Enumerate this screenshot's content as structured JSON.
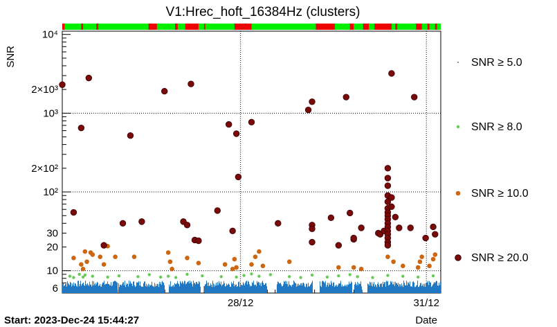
{
  "chart_data": {
    "type": "scatter",
    "title": "V1:Hrec_hoft_16384Hz (clusters)",
    "ylabel": "SNR",
    "xlabel": "Date",
    "start_label": "Start: 2023-Dec-24 15:44:27",
    "y_scale": "log",
    "ylim": [
      5.2,
      11000
    ],
    "x_tick_labels": [
      "28/12",
      "31/12"
    ],
    "y_tick_labels": [
      {
        "value": 10000,
        "label": "10⁴"
      },
      {
        "value": 2000,
        "label": "2×10³"
      },
      {
        "value": 1000,
        "label": "10³"
      },
      {
        "value": 200,
        "label": "2×10²"
      },
      {
        "value": 100,
        "label": "10²"
      },
      {
        "value": 30,
        "label": "30"
      },
      {
        "value": 20,
        "label": "20"
      },
      {
        "value": 10,
        "label": "10"
      },
      {
        "value": 6,
        "label": "6"
      }
    ],
    "grid": true,
    "legend_placement": "right",
    "segment_bar": {
      "on_color": "#00ee00",
      "off_color": "#ee0000",
      "off_segments": [
        [
          0.0,
          0.006
        ],
        [
          0.05,
          0.055
        ],
        [
          0.09,
          0.095
        ],
        [
          0.228,
          0.25
        ],
        [
          0.298,
          0.305
        ],
        [
          0.325,
          0.36
        ],
        [
          0.375,
          0.378
        ],
        [
          0.455,
          0.5
        ],
        [
          0.67,
          0.72
        ],
        [
          0.76,
          0.77
        ],
        [
          0.795,
          0.81
        ],
        [
          0.825,
          0.87
        ],
        [
          0.88,
          0.885
        ],
        [
          0.935,
          0.95
        ],
        [
          0.965,
          0.97
        ],
        [
          0.985,
          0.99
        ]
      ]
    },
    "series": [
      {
        "name": "SNR ≥ 5.0",
        "color": "#1f78c1",
        "points": []
      },
      {
        "name": "SNR ≥ 8.0",
        "color": "#66cc55",
        "points": [
          [
            0.02,
            8.5
          ],
          [
            0.03,
            8.2
          ],
          [
            0.045,
            9.0
          ],
          [
            0.055,
            8.3
          ],
          [
            0.06,
            8.8
          ],
          [
            0.08,
            8.5
          ],
          [
            0.12,
            8.3
          ],
          [
            0.15,
            8.6
          ],
          [
            0.2,
            8.4
          ],
          [
            0.23,
            8.9
          ],
          [
            0.26,
            8.3
          ],
          [
            0.28,
            8.5
          ],
          [
            0.3,
            8.2
          ],
          [
            0.33,
            9.0
          ],
          [
            0.37,
            8.6
          ],
          [
            0.42,
            8.4
          ],
          [
            0.46,
            8.3
          ],
          [
            0.48,
            8.7
          ],
          [
            0.5,
            9.1
          ],
          [
            0.52,
            8.5
          ],
          [
            0.55,
            8.9
          ],
          [
            0.6,
            8.4
          ],
          [
            0.63,
            8.2
          ],
          [
            0.66,
            8.8
          ],
          [
            0.7,
            8.3
          ],
          [
            0.73,
            8.6
          ],
          [
            0.76,
            8.9
          ],
          [
            0.78,
            8.4
          ],
          [
            0.82,
            8.2
          ],
          [
            0.86,
            8.7
          ],
          [
            0.9,
            8.5
          ],
          [
            0.94,
            8.3
          ],
          [
            0.98,
            8.6
          ]
        ]
      },
      {
        "name": "SNR ≥ 10.0",
        "color": "#cc6611",
        "points": [
          [
            0.03,
            14.5
          ],
          [
            0.05,
            12
          ],
          [
            0.055,
            10.5
          ],
          [
            0.06,
            17.5
          ],
          [
            0.065,
            13
          ],
          [
            0.075,
            17
          ],
          [
            0.08,
            16
          ],
          [
            0.1,
            15
          ],
          [
            0.11,
            12
          ],
          [
            0.12,
            20.5
          ],
          [
            0.14,
            15
          ],
          [
            0.19,
            15
          ],
          [
            0.28,
            17
          ],
          [
            0.285,
            13
          ],
          [
            0.29,
            10.5
          ],
          [
            0.33,
            14.5
          ],
          [
            0.36,
            12.5
          ],
          [
            0.43,
            12
          ],
          [
            0.45,
            10.5
          ],
          [
            0.455,
            14
          ],
          [
            0.46,
            11
          ],
          [
            0.5,
            12
          ],
          [
            0.51,
            15
          ],
          [
            0.52,
            17.5
          ],
          [
            0.53,
            11.5
          ],
          [
            0.6,
            13
          ],
          [
            0.73,
            11
          ],
          [
            0.77,
            11
          ],
          [
            0.79,
            10.5
          ],
          [
            0.86,
            15
          ],
          [
            0.875,
            13
          ],
          [
            0.9,
            11.5
          ],
          [
            0.94,
            11
          ],
          [
            0.945,
            13
          ],
          [
            0.95,
            15
          ],
          [
            0.97,
            11.5
          ],
          [
            0.98,
            14
          ],
          [
            0.985,
            16
          ]
        ]
      },
      {
        "name": "SNR ≥ 20.0",
        "color": "#7a0a0a",
        "points": [
          [
            0.0,
            2300
          ],
          [
            0.03,
            55
          ],
          [
            0.05,
            650
          ],
          [
            0.07,
            2800
          ],
          [
            0.11,
            21
          ],
          [
            0.16,
            40
          ],
          [
            0.18,
            520
          ],
          [
            0.21,
            42
          ],
          [
            0.27,
            1900
          ],
          [
            0.32,
            42
          ],
          [
            0.33,
            38
          ],
          [
            0.34,
            2350
          ],
          [
            0.35,
            24.5
          ],
          [
            0.36,
            24
          ],
          [
            0.41,
            58
          ],
          [
            0.44,
            720
          ],
          [
            0.45,
            32
          ],
          [
            0.46,
            550
          ],
          [
            0.465,
            155
          ],
          [
            0.5,
            770
          ],
          [
            0.57,
            40
          ],
          [
            0.65,
            1100
          ],
          [
            0.66,
            1400
          ],
          [
            0.66,
            38
          ],
          [
            0.66,
            34
          ],
          [
            0.66,
            23
          ],
          [
            0.71,
            47
          ],
          [
            0.73,
            21
          ],
          [
            0.75,
            1600
          ],
          [
            0.76,
            54
          ],
          [
            0.77,
            25
          ],
          [
            0.77,
            26
          ],
          [
            0.79,
            35
          ],
          [
            0.835,
            30
          ],
          [
            0.84,
            29
          ],
          [
            0.85,
            32
          ],
          [
            0.86,
            200
          ],
          [
            0.86,
            150
          ],
          [
            0.86,
            120
          ],
          [
            0.86,
            90
          ],
          [
            0.86,
            75
          ],
          [
            0.86,
            62
          ],
          [
            0.86,
            55
          ],
          [
            0.86,
            50
          ],
          [
            0.86,
            45
          ],
          [
            0.86,
            40
          ],
          [
            0.86,
            36
          ],
          [
            0.86,
            32
          ],
          [
            0.86,
            29
          ],
          [
            0.86,
            26
          ],
          [
            0.86,
            23
          ],
          [
            0.86,
            21
          ],
          [
            0.87,
            3200
          ],
          [
            0.87,
            85
          ],
          [
            0.87,
            65
          ],
          [
            0.88,
            48
          ],
          [
            0.89,
            35
          ],
          [
            0.92,
            35
          ],
          [
            0.93,
            1600
          ],
          [
            0.96,
            26
          ],
          [
            0.98,
            36
          ],
          [
            0.985,
            29
          ]
        ]
      }
    ]
  }
}
